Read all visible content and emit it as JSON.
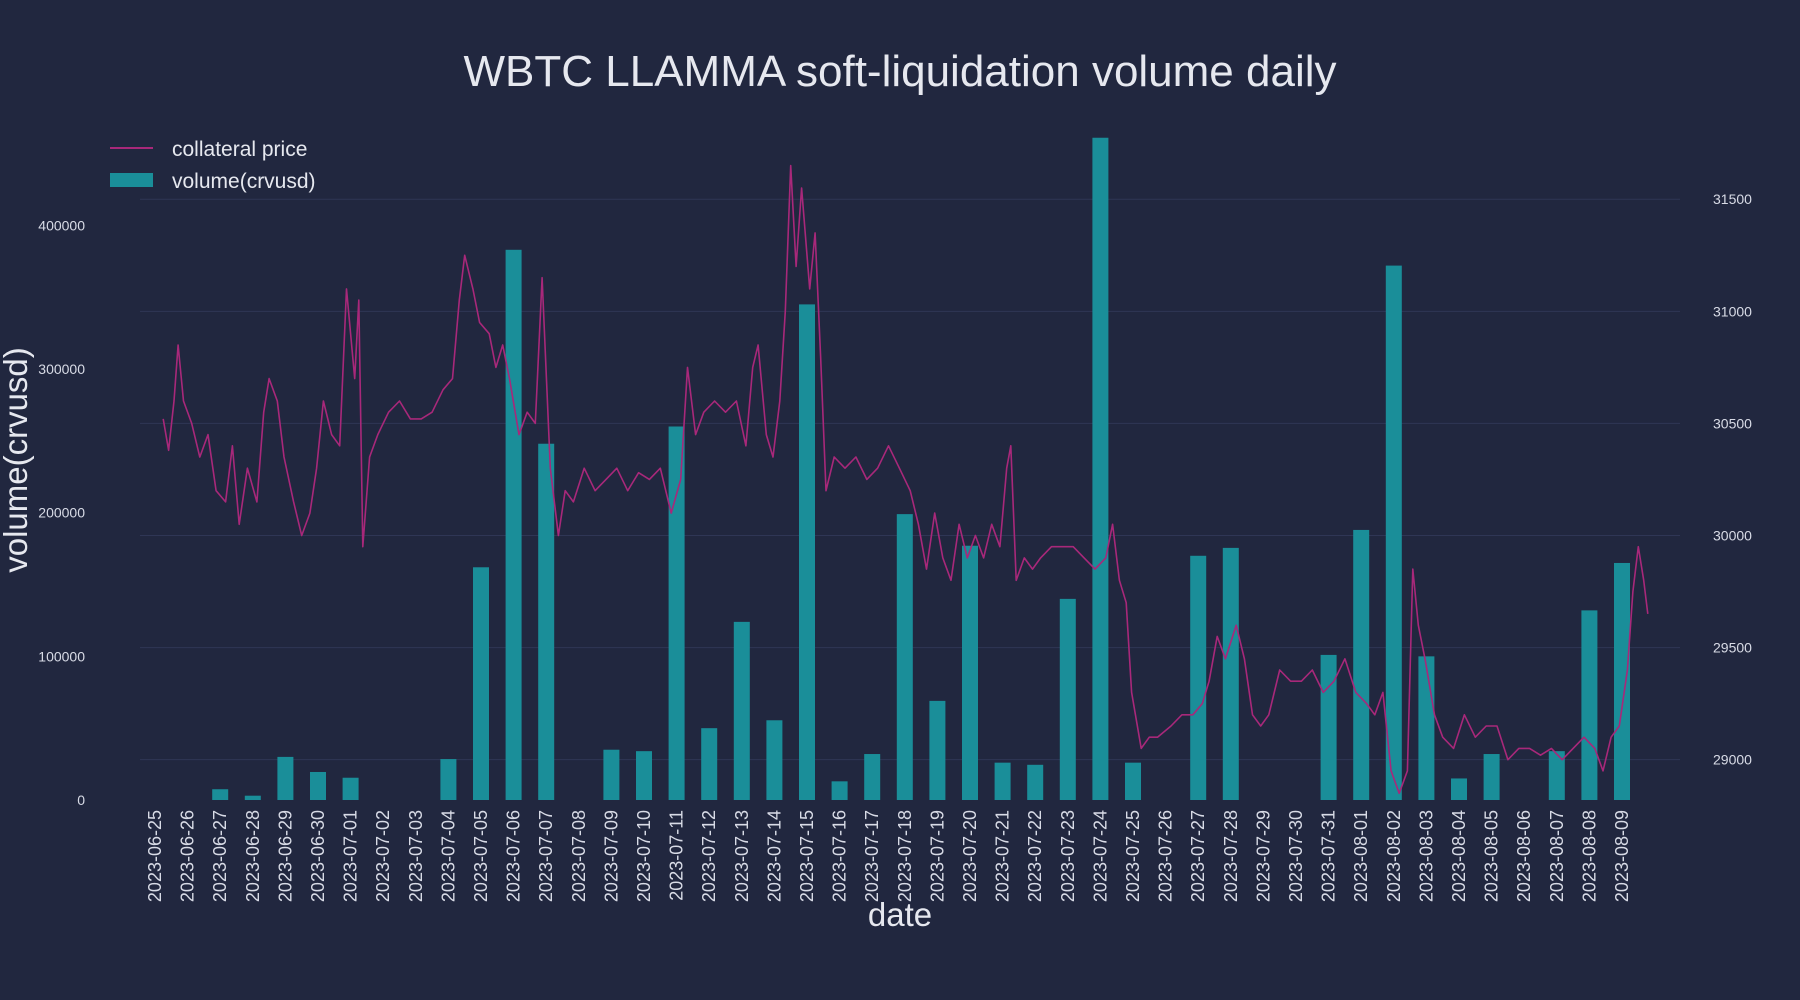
{
  "chart_data": {
    "type": "bar",
    "title": "WBTC LLAMMA soft-liquidation volume daily",
    "xlabel": "date",
    "ylabel": "volume(crvusd)",
    "y2label": "",
    "ylim": [
      0,
      465000
    ],
    "y2lim": [
      28820,
      31800
    ],
    "yticks": [
      0,
      100000,
      200000,
      300000,
      400000
    ],
    "y2ticks": [
      29000,
      29500,
      30000,
      30500,
      31000,
      31500
    ],
    "grid": "horizontal",
    "legend_position": "top-left",
    "colors": {
      "background": "#21273f",
      "bar": "#1a8e99",
      "line": "#a8287a",
      "grid": "#2f3655"
    },
    "categories": [
      "2023-06-25",
      "2023-06-26",
      "2023-06-27",
      "2023-06-28",
      "2023-06-29",
      "2023-06-30",
      "2023-07-01",
      "2023-07-02",
      "2023-07-03",
      "2023-07-04",
      "2023-07-05",
      "2023-07-06",
      "2023-07-07",
      "2023-07-08",
      "2023-07-09",
      "2023-07-10",
      "2023-07-11",
      "2023-07-12",
      "2023-07-13",
      "2023-07-14",
      "2023-07-15",
      "2023-07-16",
      "2023-07-17",
      "2023-07-18",
      "2023-07-19",
      "2023-07-20",
      "2023-07-21",
      "2023-07-22",
      "2023-07-23",
      "2023-07-24",
      "2023-07-25",
      "2023-07-26",
      "2023-07-27",
      "2023-07-28",
      "2023-07-29",
      "2023-07-30",
      "2023-07-31",
      "2023-08-01",
      "2023-08-02",
      "2023-08-03",
      "2023-08-04",
      "2023-08-05",
      "2023-08-06",
      "2023-08-07",
      "2023-08-08",
      "2023-08-09"
    ],
    "series": [
      {
        "name": "volume(crvusd)",
        "axis": "left",
        "kind": "bar",
        "values": [
          0,
          0,
          7500,
          3000,
          30000,
          19500,
          15500,
          0,
          0,
          28500,
          162000,
          383000,
          248000,
          0,
          35000,
          34000,
          260000,
          50000,
          124000,
          55500,
          345000,
          13000,
          32000,
          199000,
          69000,
          177000,
          26000,
          24500,
          140000,
          461000,
          26000,
          0,
          170000,
          175500,
          0,
          0,
          101000,
          188000,
          372000,
          100000,
          15000,
          32000,
          0,
          34000,
          132000,
          165000
        ]
      },
      {
        "name": "collateral price",
        "axis": "right",
        "kind": "line",
        "points": [
          [
            "2023-06-25T06:00",
            30520
          ],
          [
            "2023-06-25T10:00",
            30380
          ],
          [
            "2023-06-25T14:00",
            30600
          ],
          [
            "2023-06-25T17:00",
            30850
          ],
          [
            "2023-06-25T21:00",
            30600
          ],
          [
            "2023-06-26T03:00",
            30500
          ],
          [
            "2023-06-26T09:00",
            30350
          ],
          [
            "2023-06-26T15:00",
            30450
          ],
          [
            "2023-06-26T21:00",
            30200
          ],
          [
            "2023-06-27T04:00",
            30150
          ],
          [
            "2023-06-27T09:00",
            30400
          ],
          [
            "2023-06-27T14:00",
            30050
          ],
          [
            "2023-06-27T20:00",
            30300
          ],
          [
            "2023-06-28T03:00",
            30150
          ],
          [
            "2023-06-28T08:00",
            30550
          ],
          [
            "2023-06-28T12:00",
            30700
          ],
          [
            "2023-06-28T18:00",
            30600
          ],
          [
            "2023-06-28T23:00",
            30350
          ],
          [
            "2023-06-29T06:00",
            30150
          ],
          [
            "2023-06-29T12:00",
            30000
          ],
          [
            "2023-06-29T18:00",
            30100
          ],
          [
            "2023-06-29T23:00",
            30300
          ],
          [
            "2023-06-30T04:00",
            30600
          ],
          [
            "2023-06-30T10:00",
            30450
          ],
          [
            "2023-06-30T16:00",
            30400
          ],
          [
            "2023-06-30T21:00",
            31100
          ],
          [
            "2023-07-01T03:00",
            30700
          ],
          [
            "2023-07-01T06:00",
            31050
          ],
          [
            "2023-07-01T09:00",
            29950
          ],
          [
            "2023-07-01T14:00",
            30350
          ],
          [
            "2023-07-01T20:00",
            30450
          ],
          [
            "2023-07-02T04:00",
            30550
          ],
          [
            "2023-07-02T12:00",
            30600
          ],
          [
            "2023-07-02T20:00",
            30520
          ],
          [
            "2023-07-03T04:00",
            30520
          ],
          [
            "2023-07-03T12:00",
            30550
          ],
          [
            "2023-07-03T20:00",
            30650
          ],
          [
            "2023-07-04T03:00",
            30700
          ],
          [
            "2023-07-04T08:00",
            31050
          ],
          [
            "2023-07-04T12:00",
            31250
          ],
          [
            "2023-07-04T18:00",
            31100
          ],
          [
            "2023-07-04T23:00",
            30950
          ],
          [
            "2023-07-05T06:00",
            30900
          ],
          [
            "2023-07-05T11:00",
            30750
          ],
          [
            "2023-07-05T16:00",
            30850
          ],
          [
            "2023-07-05T21:00",
            30700
          ],
          [
            "2023-07-06T04:00",
            30450
          ],
          [
            "2023-07-06T10:00",
            30550
          ],
          [
            "2023-07-06T16:00",
            30500
          ],
          [
            "2023-07-06T21:00",
            31150
          ],
          [
            "2023-07-07T03:00",
            30300
          ],
          [
            "2023-07-07T09:00",
            30000
          ],
          [
            "2023-07-07T14:00",
            30200
          ],
          [
            "2023-07-07T20:00",
            30150
          ],
          [
            "2023-07-08T04:00",
            30300
          ],
          [
            "2023-07-08T12:00",
            30200
          ],
          [
            "2023-07-08T20:00",
            30250
          ],
          [
            "2023-07-09T04:00",
            30300
          ],
          [
            "2023-07-09T12:00",
            30200
          ],
          [
            "2023-07-09T20:00",
            30280
          ],
          [
            "2023-07-10T04:00",
            30250
          ],
          [
            "2023-07-10T12:00",
            30300
          ],
          [
            "2023-07-10T20:00",
            30100
          ],
          [
            "2023-07-11T03:00",
            30250
          ],
          [
            "2023-07-11T08:00",
            30750
          ],
          [
            "2023-07-11T14:00",
            30450
          ],
          [
            "2023-07-11T20:00",
            30550
          ],
          [
            "2023-07-12T04:00",
            30600
          ],
          [
            "2023-07-12T12:00",
            30550
          ],
          [
            "2023-07-12T20:00",
            30600
          ],
          [
            "2023-07-13T03:00",
            30400
          ],
          [
            "2023-07-13T08:00",
            30750
          ],
          [
            "2023-07-13T12:00",
            30850
          ],
          [
            "2023-07-13T18:00",
            30450
          ],
          [
            "2023-07-13T23:00",
            30350
          ],
          [
            "2023-07-14T04:00",
            30600
          ],
          [
            "2023-07-14T08:00",
            31000
          ],
          [
            "2023-07-14T12:00",
            31650
          ],
          [
            "2023-07-14T16:00",
            31200
          ],
          [
            "2023-07-14T20:00",
            31550
          ],
          [
            "2023-07-15T02:00",
            31100
          ],
          [
            "2023-07-15T06:00",
            31350
          ],
          [
            "2023-07-15T10:00",
            30800
          ],
          [
            "2023-07-15T14:00",
            30200
          ],
          [
            "2023-07-15T20:00",
            30350
          ],
          [
            "2023-07-16T04:00",
            30300
          ],
          [
            "2023-07-16T12:00",
            30350
          ],
          [
            "2023-07-16T20:00",
            30250
          ],
          [
            "2023-07-17T04:00",
            30300
          ],
          [
            "2023-07-17T12:00",
            30400
          ],
          [
            "2023-07-17T20:00",
            30300
          ],
          [
            "2023-07-18T04:00",
            30200
          ],
          [
            "2023-07-18T10:00",
            30050
          ],
          [
            "2023-07-18T16:00",
            29850
          ],
          [
            "2023-07-18T22:00",
            30100
          ],
          [
            "2023-07-19T04:00",
            29900
          ],
          [
            "2023-07-19T10:00",
            29800
          ],
          [
            "2023-07-19T16:00",
            30050
          ],
          [
            "2023-07-19T22:00",
            29900
          ],
          [
            "2023-07-20T04:00",
            30000
          ],
          [
            "2023-07-20T10:00",
            29900
          ],
          [
            "2023-07-20T16:00",
            30050
          ],
          [
            "2023-07-20T22:00",
            29950
          ],
          [
            "2023-07-21T03:00",
            30300
          ],
          [
            "2023-07-21T06:00",
            30400
          ],
          [
            "2023-07-21T10:00",
            29800
          ],
          [
            "2023-07-21T16:00",
            29900
          ],
          [
            "2023-07-21T22:00",
            29850
          ],
          [
            "2023-07-22T04:00",
            29900
          ],
          [
            "2023-07-22T12:00",
            29950
          ],
          [
            "2023-07-22T20:00",
            29950
          ],
          [
            "2023-07-23T04:00",
            29950
          ],
          [
            "2023-07-23T12:00",
            29900
          ],
          [
            "2023-07-23T20:00",
            29850
          ],
          [
            "2023-07-24T04:00",
            29900
          ],
          [
            "2023-07-24T09:00",
            30050
          ],
          [
            "2023-07-24T14:00",
            29800
          ],
          [
            "2023-07-24T19:00",
            29700
          ],
          [
            "2023-07-24T23:00",
            29300
          ],
          [
            "2023-07-25T06:00",
            29050
          ],
          [
            "2023-07-25T12:00",
            29100
          ],
          [
            "2023-07-25T18:00",
            29100
          ],
          [
            "2023-07-26T04:00",
            29150
          ],
          [
            "2023-07-26T12:00",
            29200
          ],
          [
            "2023-07-26T20:00",
            29200
          ],
          [
            "2023-07-27T03:00",
            29250
          ],
          [
            "2023-07-27T08:00",
            29350
          ],
          [
            "2023-07-27T14:00",
            29550
          ],
          [
            "2023-07-27T20:00",
            29450
          ],
          [
            "2023-07-28T04:00",
            29600
          ],
          [
            "2023-07-28T10:00",
            29450
          ],
          [
            "2023-07-28T16:00",
            29200
          ],
          [
            "2023-07-28T22:00",
            29150
          ],
          [
            "2023-07-29T04:00",
            29200
          ],
          [
            "2023-07-29T12:00",
            29400
          ],
          [
            "2023-07-29T20:00",
            29350
          ],
          [
            "2023-07-30T04:00",
            29350
          ],
          [
            "2023-07-30T12:00",
            29400
          ],
          [
            "2023-07-30T20:00",
            29300
          ],
          [
            "2023-07-31T04:00",
            29350
          ],
          [
            "2023-07-31T12:00",
            29450
          ],
          [
            "2023-07-31T20:00",
            29300
          ],
          [
            "2023-08-01T04:00",
            29250
          ],
          [
            "2023-08-01T10:00",
            29200
          ],
          [
            "2023-08-01T16:00",
            29300
          ],
          [
            "2023-08-01T22:00",
            28950
          ],
          [
            "2023-08-02T04:00",
            28850
          ],
          [
            "2023-08-02T10:00",
            28950
          ],
          [
            "2023-08-02T14:00",
            29850
          ],
          [
            "2023-08-02T18:00",
            29600
          ],
          [
            "2023-08-02T23:00",
            29450
          ],
          [
            "2023-08-03T06:00",
            29200
          ],
          [
            "2023-08-03T12:00",
            29100
          ],
          [
            "2023-08-03T20:00",
            29050
          ],
          [
            "2023-08-04T04:00",
            29200
          ],
          [
            "2023-08-04T12:00",
            29100
          ],
          [
            "2023-08-04T20:00",
            29150
          ],
          [
            "2023-08-05T04:00",
            29150
          ],
          [
            "2023-08-05T12:00",
            29000
          ],
          [
            "2023-08-05T20:00",
            29050
          ],
          [
            "2023-08-06T04:00",
            29050
          ],
          [
            "2023-08-06T12:00",
            29020
          ],
          [
            "2023-08-06T20:00",
            29050
          ],
          [
            "2023-08-07T04:00",
            29000
          ],
          [
            "2023-08-07T12:00",
            29050
          ],
          [
            "2023-08-07T20:00",
            29100
          ],
          [
            "2023-08-08T04:00",
            29050
          ],
          [
            "2023-08-08T10:00",
            28950
          ],
          [
            "2023-08-08T16:00",
            29100
          ],
          [
            "2023-08-08T22:00",
            29150
          ],
          [
            "2023-08-09T04:00",
            29400
          ],
          [
            "2023-08-09T08:00",
            29750
          ],
          [
            "2023-08-09T12:00",
            29950
          ],
          [
            "2023-08-09T16:00",
            29800
          ],
          [
            "2023-08-09T19:00",
            29650
          ]
        ]
      }
    ]
  }
}
